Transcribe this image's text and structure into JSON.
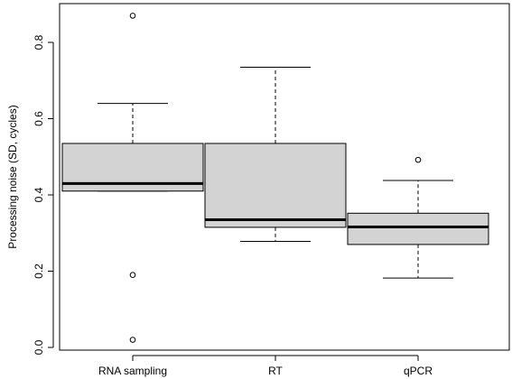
{
  "chart_data": {
    "type": "boxplot",
    "title": "",
    "xlabel": "",
    "ylabel": "Processing noise (SD, cycles)",
    "ylim": [
      0,
      0.9
    ],
    "yticks": [
      0.0,
      0.2,
      0.4,
      0.6,
      0.8
    ],
    "ytick_labels": [
      "0.0",
      "0.2",
      "0.4",
      "0.6",
      "0.8"
    ],
    "grid": false,
    "legend": "none",
    "categories": [
      "RNA sampling",
      "RT",
      "qPCR"
    ],
    "boxes": [
      {
        "category": "RNA sampling",
        "whisker_low": 0.41,
        "q1": 0.41,
        "median": 0.43,
        "q3": 0.535,
        "whisker_high": 0.64,
        "outliers": [
          0.87,
          0.19,
          0.02
        ]
      },
      {
        "category": "RT",
        "whisker_low": 0.278,
        "q1": 0.315,
        "median": 0.335,
        "q3": 0.535,
        "whisker_high": 0.735,
        "outliers": []
      },
      {
        "category": "qPCR",
        "whisker_low": 0.182,
        "q1": 0.27,
        "median": 0.316,
        "q3": 0.352,
        "whisker_high": 0.438,
        "outliers": [
          0.492
        ]
      }
    ],
    "colors": {
      "box_fill": "#d3d3d3",
      "stroke": "#000000",
      "median": "#000000"
    }
  }
}
